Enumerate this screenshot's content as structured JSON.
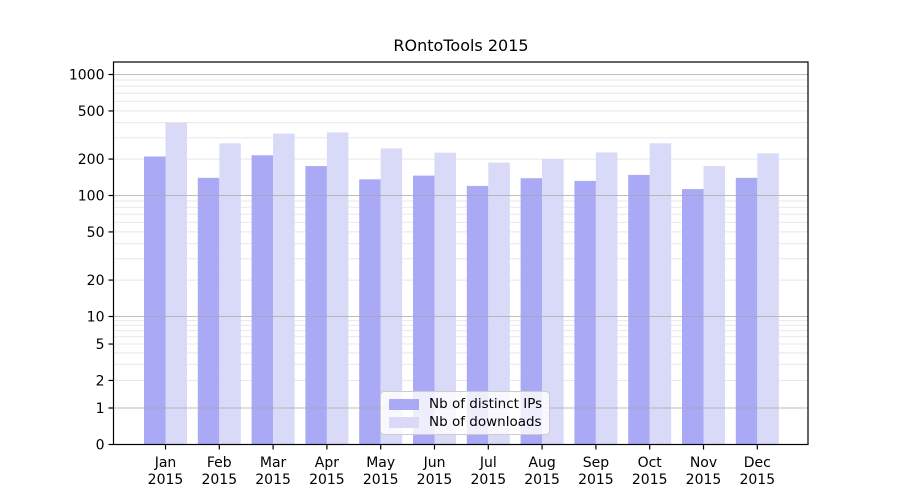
{
  "title": "ROntoTools 2015",
  "chart_data": {
    "type": "bar",
    "title": "ROntoTools 2015",
    "xlabel": "",
    "ylabel": "",
    "yscale": "symlog",
    "ylim": [
      0,
      1268
    ],
    "yticks": [
      0,
      1,
      2,
      5,
      10,
      20,
      50,
      100,
      200,
      500,
      1000
    ],
    "grid": {
      "major_color": "#a8a8a8",
      "minor_color": "#e8e8e8",
      "major_values": [
        1,
        10,
        100,
        1000
      ]
    },
    "categories": [
      "Jan",
      "Feb",
      "Mar",
      "Apr",
      "May",
      "Jun",
      "Jul",
      "Aug",
      "Sep",
      "Oct",
      "Nov",
      "Dec"
    ],
    "year": "2015",
    "series": [
      {
        "name": "Nb of distinct IPs",
        "color": "#a9a9f6",
        "values": [
          210,
          140,
          215,
          175,
          136,
          146,
          120,
          139,
          132,
          148,
          113,
          140
        ]
      },
      {
        "name": "Nb of downloads",
        "color": "#d9d9f8",
        "values": [
          400,
          270,
          325,
          332,
          245,
          226,
          187,
          200,
          227,
          270,
          175,
          223
        ]
      }
    ],
    "legend": {
      "position": "inside-bottom-center",
      "items": [
        "Nb of distinct IPs",
        "Nb of downloads"
      ]
    }
  }
}
